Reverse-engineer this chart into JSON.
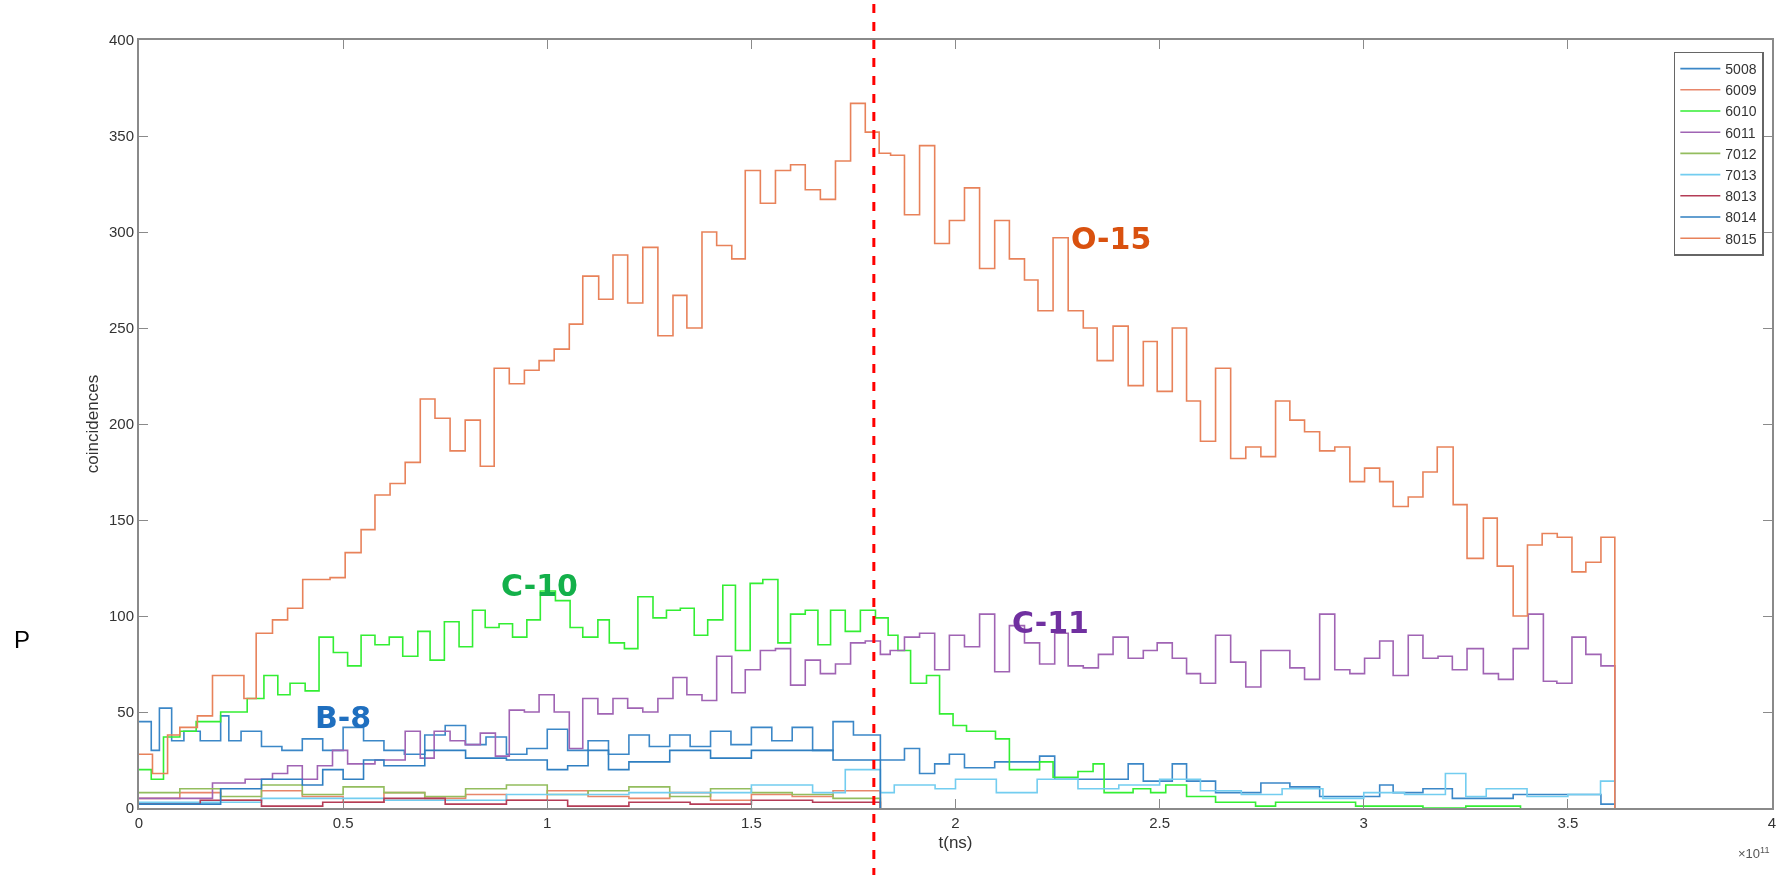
{
  "chart_data": {
    "type": "step",
    "xlabel": "t(ns)",
    "ylabel": "coincidences",
    "xlim": [
      0,
      4
    ],
    "xticks": [
      0,
      0.5,
      1,
      1.5,
      2,
      2.5,
      3,
      3.5,
      4
    ],
    "ylim": [
      0,
      400
    ],
    "yticks": [
      0,
      50,
      100,
      150,
      200,
      250,
      300,
      350,
      400
    ],
    "grid": false,
    "legend": "top right",
    "line_style": "solid",
    "ref_lines": [
      {
        "axis": "x",
        "value": 1.8,
        "color": "#ff0000",
        "line_style": "dashed"
      }
    ],
    "annotations": [
      "O-15",
      "C-10",
      "C-11",
      "B-8",
      "×10$^{11}$",
      "P"
    ],
    "series": [
      {
        "name": "5008",
        "color": "#3b87c7",
        "x": [
          0,
          0.03,
          0.05,
          0.08,
          0.11,
          0.15,
          0.2,
          0.22,
          0.25,
          0.3,
          0.35,
          0.4,
          0.45,
          0.5,
          0.55,
          0.6,
          0.65,
          0.7,
          0.75,
          0.8,
          0.85,
          0.9,
          0.95,
          1.0,
          1.05,
          1.1,
          1.15,
          1.2,
          1.25,
          1.3,
          1.35,
          1.4,
          1.45,
          1.5,
          1.55,
          1.6,
          1.65,
          1.7,
          1.75,
          1.816,
          1.875,
          1.912,
          1.949,
          1.985,
          2.022,
          2.096,
          2.206,
          2.243,
          2.35,
          2.423,
          2.46,
          2.531,
          2.566,
          2.637,
          2.748,
          2.819,
          2.892,
          3.039,
          3.072,
          3.145,
          3.217,
          3.366,
          3.44,
          3.581,
          3.615
        ],
        "values": [
          45,
          30,
          52,
          35,
          40,
          35,
          48,
          35,
          40,
          32,
          30,
          36,
          30,
          42,
          35,
          30,
          28,
          38,
          43,
          33,
          37,
          28,
          31,
          41,
          30,
          35,
          28,
          38,
          32,
          38,
          32,
          40,
          33,
          42,
          35,
          42,
          30,
          45,
          38,
          25,
          31,
          18,
          23,
          28,
          21,
          24,
          27,
          15,
          15,
          23,
          14,
          23,
          14,
          8,
          13,
          11,
          6,
          12,
          8,
          10,
          5,
          7,
          7,
          2,
          0
        ]
      },
      {
        "name": "6009",
        "color": "#e8866a",
        "x": [
          0,
          0.1,
          0.2,
          0.3,
          0.4,
          0.5,
          0.6,
          0.7,
          0.8,
          0.9,
          1.0,
          1.1,
          1.2,
          1.3,
          1.4,
          1.5,
          1.6,
          1.7,
          1.816
        ],
        "values": [
          5,
          8,
          4,
          9,
          6,
          3,
          8,
          5,
          7,
          4,
          9,
          6,
          5,
          8,
          4,
          7,
          6,
          9,
          0
        ]
      },
      {
        "name": "6010",
        "color": "#33ee33",
        "x": [
          0,
          0.03,
          0.06,
          0.1,
          0.14,
          0.2,
          0.265,
          0.306,
          0.34,
          0.37,
          0.407,
          0.441,
          0.476,
          0.511,
          0.544,
          0.578,
          0.613,
          0.646,
          0.683,
          0.713,
          0.748,
          0.784,
          0.817,
          0.848,
          0.882,
          0.915,
          0.95,
          0.983,
          1.02,
          1.056,
          1.087,
          1.124,
          1.152,
          1.189,
          1.222,
          1.259,
          1.292,
          1.326,
          1.36,
          1.393,
          1.43,
          1.461,
          1.497,
          1.528,
          1.565,
          1.596,
          1.632,
          1.663,
          1.694,
          1.73,
          1.767,
          1.804,
          1.835,
          1.859,
          1.89,
          1.929,
          1.961,
          1.994,
          2.027,
          2.098,
          2.132,
          2.206,
          2.239,
          2.3,
          2.337,
          2.364,
          2.435,
          2.478,
          2.515,
          2.566,
          2.637,
          2.735,
          2.784,
          2.98,
          3.145,
          3.25,
          3.384
        ],
        "values": [
          20,
          15,
          37,
          40,
          45,
          50,
          57,
          69,
          59,
          65,
          61,
          89,
          81,
          74,
          90,
          85,
          89,
          79,
          92,
          77,
          97,
          84,
          103,
          94,
          96,
          89,
          98,
          113,
          108,
          94,
          89,
          98,
          86,
          83,
          110,
          99,
          103,
          104,
          90,
          98,
          116,
          82,
          117,
          119,
          86,
          101,
          103,
          85,
          103,
          92,
          103,
          99,
          90,
          82,
          65,
          69,
          49,
          43,
          40,
          36,
          20,
          24,
          16,
          19,
          23,
          8,
          10,
          8,
          12,
          6,
          3,
          1,
          3,
          1,
          0,
          1,
          0
        ]
      },
      {
        "name": "6011",
        "color": "#a064b4",
        "x": [
          0,
          0.18,
          0.26,
          0.327,
          0.364,
          0.4,
          0.437,
          0.474,
          0.511,
          0.578,
          0.652,
          0.689,
          0.723,
          0.762,
          0.799,
          0.836,
          0.873,
          0.907,
          0.944,
          0.98,
          1.017,
          1.054,
          1.087,
          1.124,
          1.161,
          1.197,
          1.234,
          1.271,
          1.308,
          1.342,
          1.379,
          1.415,
          1.452,
          1.485,
          1.522,
          1.559,
          1.596,
          1.632,
          1.669,
          1.706,
          1.743,
          1.779,
          1.816,
          1.84,
          1.875,
          1.912,
          1.949,
          1.985,
          2.022,
          2.059,
          2.096,
          2.132,
          2.169,
          2.206,
          2.243,
          2.276,
          2.313,
          2.35,
          2.386,
          2.423,
          2.46,
          2.494,
          2.531,
          2.566,
          2.6,
          2.637,
          2.674,
          2.711,
          2.748,
          2.784,
          2.819,
          2.855,
          2.892,
          2.929,
          2.966,
          3.002,
          3.039,
          3.072,
          3.109,
          3.145,
          3.182,
          3.217,
          3.253,
          3.293,
          3.33,
          3.366,
          3.403,
          3.44,
          3.473,
          3.51,
          3.544,
          3.581,
          3.615
        ],
        "values": [
          5,
          13,
          15,
          18,
          22,
          15,
          22,
          30,
          23,
          25,
          40,
          26,
          40,
          35,
          33,
          39,
          27,
          51,
          50,
          59,
          50,
          31,
          57,
          49,
          57,
          52,
          50,
          57,
          68,
          59,
          56,
          79,
          60,
          72,
          82,
          83,
          64,
          77,
          70,
          75,
          86,
          87,
          80,
          82,
          89,
          91,
          72,
          90,
          84,
          101,
          71,
          95,
          86,
          75,
          91,
          74,
          73,
          80,
          89,
          78,
          82,
          86,
          78,
          70,
          65,
          90,
          76,
          63,
          82,
          82,
          73,
          67,
          101,
          72,
          70,
          78,
          87,
          69,
          90,
          78,
          79,
          72,
          83,
          70,
          67,
          83,
          101,
          66,
          65,
          89,
          80,
          74,
          0
        ]
      },
      {
        "name": "7012",
        "color": "#93bd5e",
        "x": [
          0,
          0.1,
          0.2,
          0.3,
          0.4,
          0.5,
          0.6,
          0.7,
          0.8,
          0.9,
          1.0,
          1.1,
          1.2,
          1.3,
          1.4,
          1.5,
          1.6,
          1.7,
          1.816
        ],
        "values": [
          8,
          10,
          6,
          12,
          7,
          11,
          8,
          6,
          10,
          12,
          7,
          9,
          11,
          6,
          10,
          8,
          7,
          5,
          0
        ]
      },
      {
        "name": "7013",
        "color": "#73cdf0",
        "x": [
          0,
          0.3,
          0.6,
          0.9,
          1.2,
          1.5,
          1.65,
          1.73,
          1.816,
          1.85,
          1.95,
          2.0,
          2.1,
          2.2,
          2.3,
          2.4,
          2.5,
          2.6,
          2.7,
          2.8,
          2.9,
          3.0,
          3.1,
          3.2,
          3.25,
          3.3,
          3.4,
          3.5,
          3.58,
          3.615
        ],
        "values": [
          3,
          5,
          4,
          7,
          8,
          12,
          8,
          20,
          8,
          12,
          10,
          15,
          8,
          15,
          10,
          12,
          15,
          9,
          7,
          10,
          5,
          8,
          7,
          18,
          6,
          10,
          6,
          7,
          14,
          0
        ]
      },
      {
        "name": "8013",
        "color": "#b43c56",
        "x": [
          0,
          0.15,
          0.3,
          0.45,
          0.6,
          0.75,
          0.9,
          1.05,
          1.2,
          1.35,
          1.5,
          1.65,
          1.816
        ],
        "values": [
          2,
          4,
          1,
          3,
          5,
          2,
          4,
          1,
          3,
          2,
          4,
          3,
          0
        ]
      },
      {
        "name": "8014",
        "color": "#2f7fc1",
        "x": [
          0,
          0.2,
          0.3,
          0.4,
          0.45,
          0.5,
          0.55,
          0.6,
          0.7,
          0.8,
          0.9,
          1.0,
          1.05,
          1.1,
          1.15,
          1.2,
          1.3,
          1.4,
          1.5,
          1.6,
          1.7,
          1.816
        ],
        "values": [
          2,
          10,
          15,
          12,
          20,
          15,
          25,
          22,
          30,
          26,
          25,
          20,
          22,
          30,
          20,
          24,
          30,
          26,
          30,
          30,
          25,
          0
        ]
      },
      {
        "name": "8015",
        "color": "#e8825a",
        "x": [
          0,
          0.033,
          0.07,
          0.1,
          0.143,
          0.18,
          0.257,
          0.287,
          0.327,
          0.364,
          0.401,
          0.468,
          0.505,
          0.544,
          0.578,
          0.615,
          0.652,
          0.689,
          0.725,
          0.762,
          0.799,
          0.836,
          0.87,
          0.907,
          0.944,
          0.98,
          1.017,
          1.054,
          1.087,
          1.126,
          1.161,
          1.197,
          1.234,
          1.271,
          1.308,
          1.342,
          1.379,
          1.415,
          1.452,
          1.485,
          1.522,
          1.559,
          1.596,
          1.632,
          1.669,
          1.706,
          1.743,
          1.779,
          1.813,
          1.841,
          1.875,
          1.912,
          1.949,
          1.985,
          2.022,
          2.059,
          2.096,
          2.132,
          2.169,
          2.202,
          2.239,
          2.276,
          2.313,
          2.347,
          2.386,
          2.423,
          2.46,
          2.494,
          2.531,
          2.566,
          2.6,
          2.637,
          2.674,
          2.711,
          2.748,
          2.784,
          2.819,
          2.855,
          2.892,
          2.929,
          2.966,
          3.002,
          3.039,
          3.072,
          3.109,
          3.145,
          3.18,
          3.219,
          3.253,
          3.293,
          3.327,
          3.366,
          3.401,
          3.437,
          3.474,
          3.51,
          3.544,
          3.581,
          3.615
        ],
        "values": [
          28,
          18,
          38,
          42,
          48,
          69,
          57,
          91,
          98,
          104,
          119,
          120,
          133,
          145,
          163,
          169,
          180,
          213,
          203,
          186,
          202,
          178,
          229,
          221,
          228,
          233,
          239,
          252,
          277,
          265,
          288,
          263,
          292,
          246,
          267,
          250,
          300,
          293,
          286,
          332,
          315,
          332,
          335,
          322,
          317,
          337,
          367,
          352,
          341,
          340,
          309,
          345,
          294,
          306,
          323,
          281,
          306,
          286,
          275,
          259,
          297,
          259,
          250,
          233,
          251,
          220,
          243,
          217,
          250,
          212,
          191,
          229,
          182,
          188,
          183,
          212,
          202,
          196,
          186,
          188,
          170,
          177,
          170,
          157,
          162,
          175,
          188,
          158,
          130,
          151,
          126,
          100,
          137,
          143,
          141,
          123,
          128,
          141,
          0
        ]
      }
    ]
  }
}
